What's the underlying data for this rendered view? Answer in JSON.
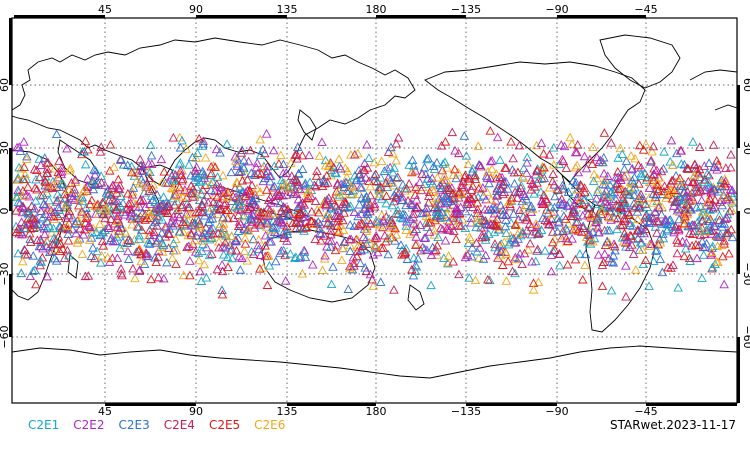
{
  "map": {
    "x_ticks": [
      "45",
      "90",
      "135",
      "180",
      "−135",
      "−90",
      "−45"
    ],
    "y_ticks": [
      "60",
      "30",
      "0",
      "−30",
      "−60"
    ],
    "symbol": "triangle-outline",
    "grid": "dotted"
  },
  "legend": [
    {
      "label": "C2E1",
      "color": "#17a6c8"
    },
    {
      "label": "C2E2",
      "color": "#b224c4"
    },
    {
      "label": "C2E3",
      "color": "#2d6fd6"
    },
    {
      "label": "C2E4",
      "color": "#c81e58"
    },
    {
      "label": "C2E5",
      "color": "#e01818"
    },
    {
      "label": "C2E6",
      "color": "#f2a81a"
    }
  ],
  "stamp": "STARwet.2023-11-17"
}
